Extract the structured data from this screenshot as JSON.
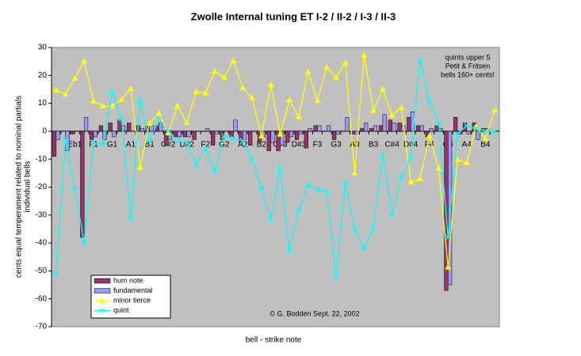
{
  "chart_data": {
    "type": "bar",
    "title": "Zwolle Internal tuning ET I-2 / II-2 / I-3 / II-3",
    "ylabel": [
      "cents equal temperament related to nominal partials",
      "individual bells"
    ],
    "xlabel": "bell - strike note",
    "annotation": [
      "quints upper 5",
      "Petit & Fritsen",
      "bells 160+ cents!"
    ],
    "credit": "© G. Bodden Sept. 22, 2002",
    "categories": [
      null,
      null,
      "Eb1",
      null,
      "F1",
      null,
      "G1",
      null,
      "A1",
      null,
      "B1",
      null,
      "C#2",
      null,
      "D#2",
      null,
      "F2",
      null,
      "G2",
      null,
      "A2",
      null,
      "B2",
      null,
      "C#3",
      null,
      "D#3",
      null,
      "F3",
      null,
      "G3",
      null,
      "A3",
      null,
      "B3",
      null,
      "C#4",
      null,
      "D#4",
      null,
      "F4",
      null,
      "G4",
      null,
      "A4",
      null,
      "B4",
      null
    ],
    "series": [
      {
        "name": "hum note",
        "type": "bar",
        "color": "#993366",
        "values": [
          -9,
          0,
          -1,
          -38,
          -3,
          2,
          3,
          4,
          3,
          2,
          2,
          2,
          -5,
          -2,
          -2,
          -3,
          0,
          -5,
          -3,
          -2,
          -4,
          -5,
          -4,
          -7,
          -7,
          -4,
          -3,
          -6,
          2,
          0,
          -3,
          0,
          -1,
          1,
          1,
          2,
          4,
          3,
          5,
          2,
          -2,
          2,
          -57,
          5,
          3,
          3,
          1,
          0
        ]
      },
      {
        "name": "fundamental",
        "type": "bar",
        "color": "#9999ff",
        "values": [
          -3,
          -7,
          0,
          5,
          -2,
          -3,
          -2,
          2,
          0,
          1,
          2,
          3,
          -3,
          -2,
          -2,
          0,
          1,
          -1,
          0,
          4,
          -3,
          0,
          -2,
          -4,
          -5,
          -2,
          -1,
          1,
          2,
          2,
          -1,
          5,
          -1,
          3,
          2,
          6,
          3,
          2,
          7,
          2,
          1,
          1,
          -55,
          -1,
          -1,
          -3,
          1,
          0
        ]
      },
      {
        "name": "minor tierce",
        "type": "line",
        "marker": "triangle",
        "color": "#ffff00",
        "values": [
          14.7,
          13.3,
          19,
          25,
          10.8,
          9.1,
          9.1,
          11.3,
          15.3,
          -13,
          2.8,
          6.5,
          -0.6,
          9.1,
          3.1,
          14.2,
          13.6,
          21.5,
          19.3,
          25.2,
          15.6,
          11.9,
          -1.7,
          16.7,
          -1.1,
          11.3,
          5.1,
          21.2,
          11,
          22.9,
          19.3,
          24.6,
          -15,
          27.2,
          7.4,
          15,
          5.7,
          8.5,
          -18.1,
          -17,
          -1.7,
          -13.3,
          -48.7,
          -10.2,
          -11.3,
          1.7,
          -2.8,
          7.6
        ]
      },
      {
        "name": "quint",
        "type": "line",
        "marker": "x",
        "color": "#00ffff",
        "values": [
          -51,
          -3,
          -21,
          -39.7,
          -4,
          -4.8,
          14.2,
          4.5,
          -31.2,
          11.3,
          -3.4,
          4,
          0,
          -3.4,
          -4,
          -11.9,
          -6.2,
          -14.2,
          -1.7,
          -2.5,
          -3.4,
          -10.2,
          -20.4,
          -31.7,
          -13,
          -43,
          -28.3,
          -19.3,
          -21,
          -21.5,
          -52.1,
          -18.7,
          -35.1,
          -41.9,
          -34.6,
          -8.5,
          -30,
          -16.4,
          -9.6,
          25.5,
          10.8,
          2.8,
          -38,
          -1,
          2,
          1,
          0,
          0
        ]
      }
    ],
    "ylim": [
      -70,
      30
    ],
    "yticks": [
      -70,
      -60,
      -50,
      -40,
      -30,
      -20,
      -10,
      0,
      10,
      20,
      30
    ],
    "grid": false,
    "background": "#c0c0c0"
  }
}
